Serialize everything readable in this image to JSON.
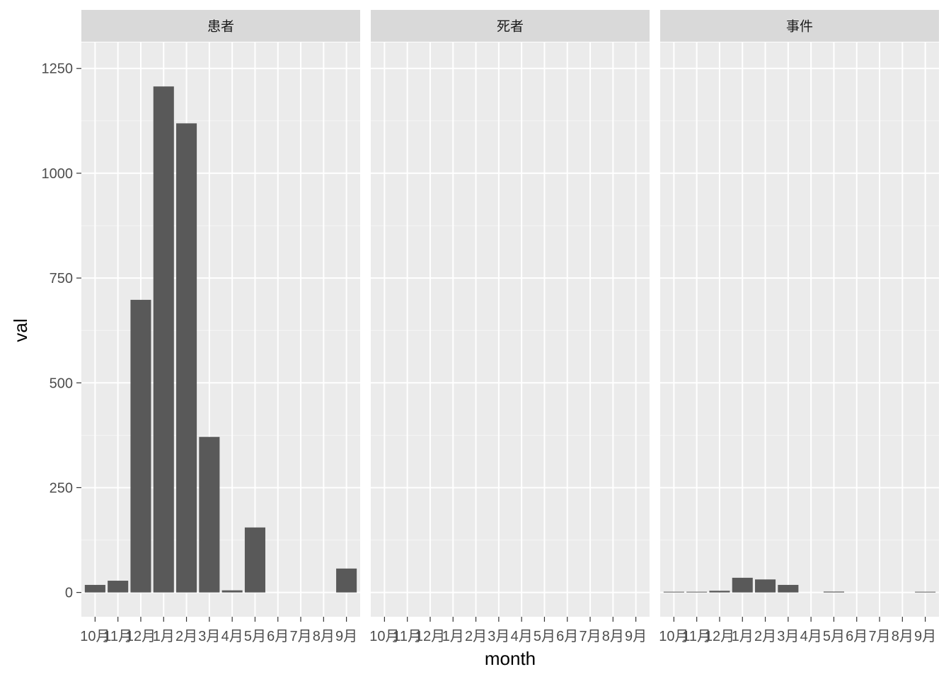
{
  "chart_data": {
    "type": "bar",
    "xlabel": "month",
    "ylabel": "val",
    "ylim": [
      -58,
      1312
    ],
    "yticks": [
      0,
      250,
      500,
      750,
      1000,
      1250
    ],
    "categories": [
      "10月",
      "11月",
      "12月",
      "1月",
      "2月",
      "3月",
      "4月",
      "5月",
      "6月",
      "7月",
      "8月",
      "9月"
    ],
    "panels": [
      {
        "name": "患者",
        "values": [
          18,
          28,
          698,
          1207,
          1119,
          371,
          5,
          155,
          0,
          0,
          0,
          57
        ]
      },
      {
        "name": "死者",
        "values": [
          0,
          0,
          0,
          0,
          0,
          0,
          0,
          0,
          0,
          0,
          0,
          0
        ]
      },
      {
        "name": "事件",
        "values": [
          1,
          1,
          4,
          35,
          31,
          18,
          0,
          2,
          0,
          0,
          0,
          1
        ]
      }
    ],
    "bar_color": "#595959",
    "panel_background": "#ebebeb",
    "strip_background": "#d9d9d9",
    "grid": true,
    "legend": "none"
  }
}
